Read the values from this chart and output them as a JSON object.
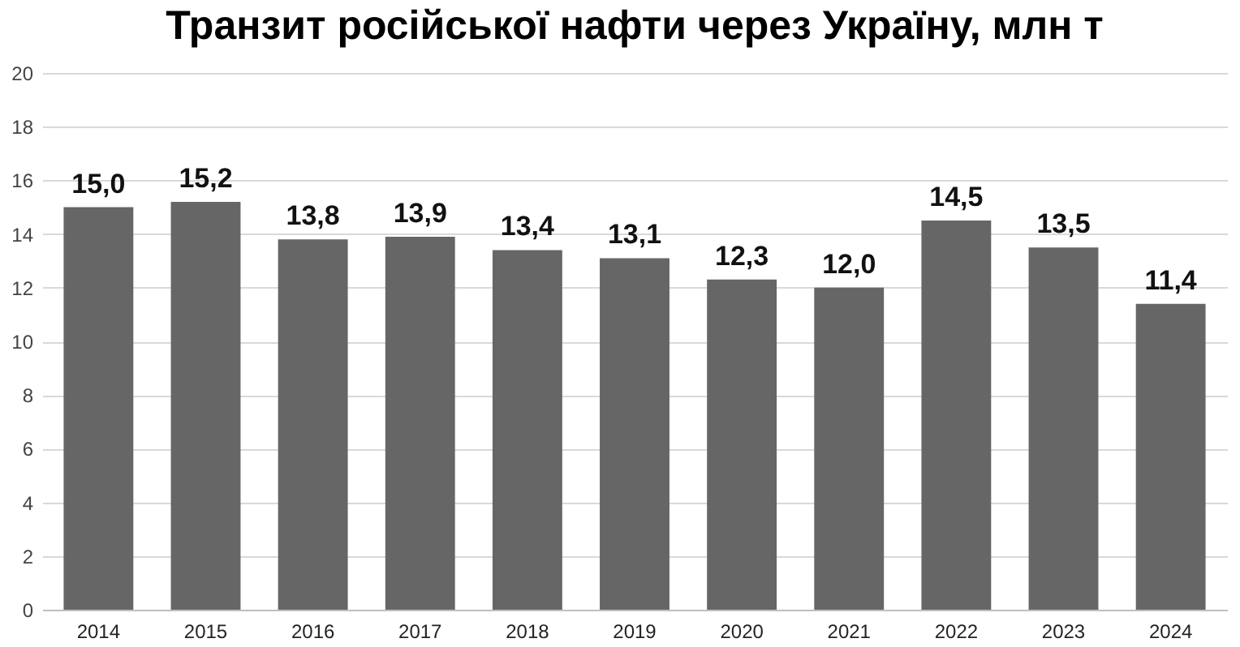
{
  "chart_data": {
    "type": "bar",
    "title": "Транзит російської нафти через Україну, млн т",
    "categories": [
      "2014",
      "2015",
      "2016",
      "2017",
      "2018",
      "2019",
      "2020",
      "2021",
      "2022",
      "2023",
      "2024"
    ],
    "values": [
      15.0,
      15.2,
      13.8,
      13.9,
      13.4,
      13.1,
      12.3,
      12.0,
      14.5,
      13.5,
      11.4
    ],
    "value_labels": [
      "15,0",
      "15,2",
      "13,8",
      "13,9",
      "13,4",
      "13,1",
      "12,3",
      "12,0",
      "14,5",
      "13,5",
      "11,4"
    ],
    "color": "#666666",
    "ylim": [
      0,
      20
    ],
    "yticks": [
      0,
      2,
      4,
      6,
      8,
      10,
      12,
      14,
      16,
      18,
      20
    ],
    "grid": "y"
  }
}
